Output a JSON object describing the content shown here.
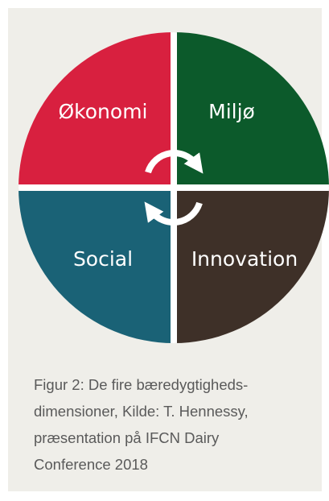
{
  "quadrants": [
    {
      "label": "Økonomi"
    },
    {
      "label": "Miljø"
    },
    {
      "label": "Social"
    },
    {
      "label": "Innovation"
    }
  ],
  "caption": {
    "lines": [
      "Figur 2: De fire bæredygtigheds-",
      "dimensioner, Kilde: T. Hennessy,",
      "præsentation på IFCN Dairy",
      "Conference 2018"
    ]
  }
}
